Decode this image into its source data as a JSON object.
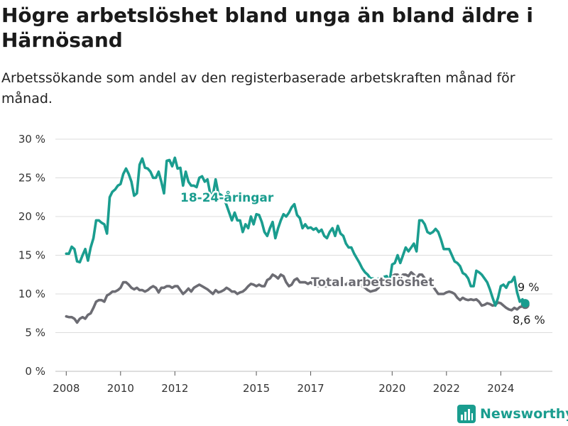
{
  "header": {
    "title": "Högre arbetslöshet bland unga än bland äldre i Härnösand",
    "subtitle": "Arbetssökande som andel av den registerbaserade arbetskraften månad för månad."
  },
  "brand": {
    "name": "Newsworthy",
    "icon": "bar-chart-logo-icon",
    "color": "#1a9d8f"
  },
  "chart_data": {
    "type": "line",
    "title": "",
    "xlabel": "",
    "ylabel": "",
    "xlim": [
      2007.6,
      2025.9
    ],
    "ylim": [
      0,
      30
    ],
    "y_ticks": [
      0,
      5,
      10,
      15,
      20,
      25,
      30
    ],
    "y_tick_labels": [
      "0 %",
      "5 %",
      "10 %",
      "15 %",
      "20 %",
      "25 %",
      "30 %"
    ],
    "x_ticks": [
      2008,
      2010,
      2012,
      2015,
      2017,
      2020,
      2022,
      2024
    ],
    "x_tick_labels": [
      "2008",
      "2010",
      "2012",
      "2015",
      "2017",
      "2020",
      "2022",
      "2024"
    ],
    "grid": "horizontal",
    "series": [
      {
        "name": "18-24-åringar",
        "color": "#1a9d8f",
        "end_label": "9 %",
        "x": [
          2008.0,
          2008.1,
          2008.2,
          2008.3,
          2008.4,
          2008.5,
          2008.6,
          2008.7,
          2008.8,
          2008.9,
          2009.0,
          2009.1,
          2009.2,
          2009.3,
          2009.4,
          2009.5,
          2009.6,
          2009.7,
          2009.8,
          2009.9,
          2010.0,
          2010.1,
          2010.2,
          2010.3,
          2010.4,
          2010.5,
          2010.6,
          2010.7,
          2010.8,
          2010.9,
          2011.0,
          2011.1,
          2011.2,
          2011.3,
          2011.4,
          2011.5,
          2011.6,
          2011.7,
          2011.8,
          2011.9,
          2012.0,
          2012.1,
          2012.2,
          2012.3,
          2012.4,
          2012.5,
          2012.6,
          2012.7,
          2012.8,
          2012.9,
          2013.0,
          2013.1,
          2013.2,
          2013.3,
          2013.4,
          2013.5,
          2013.6,
          2013.7,
          2013.8,
          2013.9,
          2014.0,
          2014.1,
          2014.2,
          2014.3,
          2014.4,
          2014.5,
          2014.6,
          2014.7,
          2014.8,
          2014.9,
          2015.0,
          2015.1,
          2015.2,
          2015.3,
          2015.4,
          2015.5,
          2015.6,
          2015.7,
          2015.8,
          2015.9,
          2016.0,
          2016.1,
          2016.2,
          2016.3,
          2016.4,
          2016.5,
          2016.6,
          2016.7,
          2016.8,
          2016.9,
          2017.0,
          2017.1,
          2017.2,
          2017.3,
          2017.4,
          2017.5,
          2017.6,
          2017.7,
          2017.8,
          2017.9,
          2018.0,
          2018.1,
          2018.2,
          2018.3,
          2018.4,
          2018.5,
          2018.6,
          2018.7,
          2018.8,
          2018.9,
          2019.0,
          2019.1,
          2019.2,
          2019.3,
          2019.4,
          2019.5,
          2019.6,
          2019.7,
          2019.8,
          2019.9,
          2020.0,
          2020.1,
          2020.2,
          2020.3,
          2020.4,
          2020.5,
          2020.6,
          2020.7,
          2020.8,
          2020.9,
          2021.0,
          2021.1,
          2021.2,
          2021.3,
          2021.4,
          2021.5,
          2021.6,
          2021.7,
          2021.8,
          2021.9,
          2022.0,
          2022.1,
          2022.2,
          2022.3,
          2022.4,
          2022.5,
          2022.6,
          2022.7,
          2022.8,
          2022.9,
          2023.0,
          2023.1,
          2023.2,
          2023.3,
          2023.4,
          2023.5,
          2023.6,
          2023.7,
          2023.8,
          2023.9,
          2024.0,
          2024.1,
          2024.2,
          2024.3,
          2024.4,
          2024.5,
          2024.6,
          2024.7,
          2024.8,
          2024.9
        ],
        "values": [
          15.2,
          15.2,
          16.1,
          15.8,
          14.2,
          14.1,
          15.0,
          15.8,
          14.3,
          16.0,
          17.2,
          19.5,
          19.5,
          19.2,
          19.0,
          17.8,
          22.5,
          23.2,
          23.5,
          24.0,
          24.2,
          25.5,
          26.2,
          25.5,
          24.5,
          22.7,
          23.0,
          26.7,
          27.5,
          26.3,
          26.2,
          25.8,
          25.0,
          25.0,
          25.8,
          24.5,
          23.0,
          27.2,
          27.3,
          26.5,
          27.6,
          26.2,
          26.3,
          24.0,
          25.8,
          24.5,
          24.0,
          24.0,
          23.8,
          25.0,
          25.2,
          24.5,
          24.8,
          23.0,
          22.8,
          24.8,
          23.0,
          22.8,
          22.4,
          21.5,
          20.5,
          19.5,
          20.5,
          19.5,
          19.5,
          18.0,
          19.0,
          18.5,
          20.0,
          19.0,
          20.3,
          20.2,
          19.3,
          18.0,
          17.5,
          18.5,
          19.3,
          17.2,
          18.5,
          19.5,
          20.3,
          20.0,
          20.5,
          21.2,
          21.6,
          20.2,
          19.8,
          18.5,
          19.0,
          18.5,
          18.6,
          18.3,
          18.5,
          18.0,
          18.3,
          17.5,
          17.2,
          18.0,
          18.5,
          17.5,
          18.8,
          17.8,
          17.5,
          16.5,
          16.0,
          16.0,
          15.2,
          14.6,
          14.0,
          13.3,
          12.8,
          12.5,
          12.0,
          12.0,
          11.2,
          12.0,
          11.5,
          12.2,
          12.3,
          11.5,
          13.8,
          14.0,
          15.0,
          14.0,
          15.0,
          16.0,
          15.5,
          16.0,
          16.5,
          15.5,
          19.5,
          19.5,
          19.0,
          18.0,
          17.8,
          18.0,
          18.4,
          18.0,
          17.0,
          15.8,
          15.8,
          15.8,
          15.0,
          14.2,
          14.0,
          13.6,
          12.7,
          12.5,
          12.0,
          11.0,
          11.0,
          13.0,
          12.8,
          12.5,
          12.0,
          11.5,
          10.6,
          9.5,
          8.5,
          9.5,
          11.0,
          11.2,
          10.8,
          11.5,
          11.6,
          12.2,
          10.2,
          9.0,
          9.3,
          8.8
        ]
      },
      {
        "name": "Total arbetslöshet",
        "color": "#6c6c73",
        "end_label": "8,6 %",
        "x": [
          2008.0,
          2008.1,
          2008.2,
          2008.3,
          2008.4,
          2008.5,
          2008.6,
          2008.7,
          2008.8,
          2008.9,
          2009.0,
          2009.1,
          2009.2,
          2009.3,
          2009.4,
          2009.5,
          2009.6,
          2009.7,
          2009.8,
          2009.9,
          2010.0,
          2010.1,
          2010.2,
          2010.3,
          2010.4,
          2010.5,
          2010.6,
          2010.7,
          2010.8,
          2010.9,
          2011.0,
          2011.1,
          2011.2,
          2011.3,
          2011.4,
          2011.5,
          2011.6,
          2011.7,
          2011.8,
          2011.9,
          2012.0,
          2012.1,
          2012.2,
          2012.3,
          2012.4,
          2012.5,
          2012.6,
          2012.7,
          2012.8,
          2012.9,
          2013.0,
          2013.1,
          2013.2,
          2013.3,
          2013.4,
          2013.5,
          2013.6,
          2013.7,
          2013.8,
          2013.9,
          2014.0,
          2014.1,
          2014.2,
          2014.3,
          2014.4,
          2014.5,
          2014.6,
          2014.7,
          2014.8,
          2014.9,
          2015.0,
          2015.1,
          2015.2,
          2015.3,
          2015.4,
          2015.5,
          2015.6,
          2015.7,
          2015.8,
          2015.9,
          2016.0,
          2016.1,
          2016.2,
          2016.3,
          2016.4,
          2016.5,
          2016.6,
          2016.7,
          2016.8,
          2016.9,
          2017.0,
          2017.1,
          2017.2,
          2017.3,
          2017.4,
          2017.5,
          2017.6,
          2017.7,
          2017.8,
          2017.9,
          2018.0,
          2018.1,
          2018.2,
          2018.3,
          2018.4,
          2018.5,
          2018.6,
          2018.7,
          2018.8,
          2018.9,
          2019.0,
          2019.1,
          2019.2,
          2019.3,
          2019.4,
          2019.5,
          2019.6,
          2019.7,
          2019.8,
          2019.9,
          2020.0,
          2020.1,
          2020.2,
          2020.3,
          2020.4,
          2020.5,
          2020.6,
          2020.7,
          2020.8,
          2020.9,
          2021.0,
          2021.1,
          2021.2,
          2021.3,
          2021.4,
          2021.5,
          2021.6,
          2021.7,
          2021.8,
          2021.9,
          2022.0,
          2022.1,
          2022.2,
          2022.3,
          2022.4,
          2022.5,
          2022.6,
          2022.7,
          2022.8,
          2022.9,
          2023.0,
          2023.1,
          2023.2,
          2023.3,
          2023.4,
          2023.5,
          2023.6,
          2023.7,
          2023.8,
          2023.9,
          2024.0,
          2024.1,
          2024.2,
          2024.3,
          2024.4,
          2024.5,
          2024.6,
          2024.7,
          2024.8,
          2024.9
        ],
        "values": [
          7.1,
          7.0,
          7.0,
          6.8,
          6.3,
          6.8,
          7.0,
          6.8,
          7.3,
          7.5,
          8.2,
          9.0,
          9.2,
          9.2,
          9.0,
          9.8,
          10.0,
          10.3,
          10.3,
          10.5,
          10.8,
          11.5,
          11.5,
          11.2,
          10.8,
          10.6,
          10.8,
          10.5,
          10.5,
          10.3,
          10.5,
          10.8,
          11.0,
          10.8,
          10.2,
          10.8,
          10.8,
          11.0,
          11.0,
          10.8,
          11.0,
          11.0,
          10.5,
          10.0,
          10.3,
          10.7,
          10.3,
          10.8,
          11.0,
          11.2,
          11.0,
          10.8,
          10.6,
          10.3,
          10.0,
          10.5,
          10.2,
          10.3,
          10.5,
          10.8,
          10.6,
          10.3,
          10.3,
          10.0,
          10.2,
          10.3,
          10.6,
          11.0,
          11.3,
          11.2,
          11.0,
          11.2,
          11.0,
          11.0,
          11.8,
          12.0,
          12.5,
          12.3,
          12.0,
          12.5,
          12.3,
          11.5,
          11.0,
          11.2,
          11.8,
          12.0,
          11.5,
          11.5,
          11.5,
          11.3,
          11.5,
          11.2,
          11.0,
          11.0,
          11.2,
          11.0,
          11.0,
          11.5,
          11.5,
          11.2,
          11.5,
          11.3,
          11.3,
          11.2,
          11.5,
          11.5,
          11.2,
          11.5,
          11.3,
          11.0,
          10.8,
          10.5,
          10.3,
          10.4,
          10.5,
          10.8,
          11.5,
          11.8,
          12.0,
          11.8,
          12.3,
          12.5,
          12.5,
          12.0,
          12.5,
          12.5,
          12.3,
          12.8,
          12.5,
          12.0,
          12.5,
          12.5,
          12.0,
          11.5,
          11.5,
          11.0,
          10.5,
          10.0,
          10.0,
          10.0,
          10.2,
          10.3,
          10.2,
          10.0,
          9.5,
          9.2,
          9.5,
          9.3,
          9.2,
          9.3,
          9.2,
          9.3,
          9.0,
          8.5,
          8.6,
          8.8,
          8.7,
          8.5,
          8.6,
          8.9,
          8.8,
          8.5,
          8.2,
          8.0,
          7.9,
          8.2,
          8.0,
          8.3,
          8.4,
          8.6
        ]
      }
    ]
  }
}
